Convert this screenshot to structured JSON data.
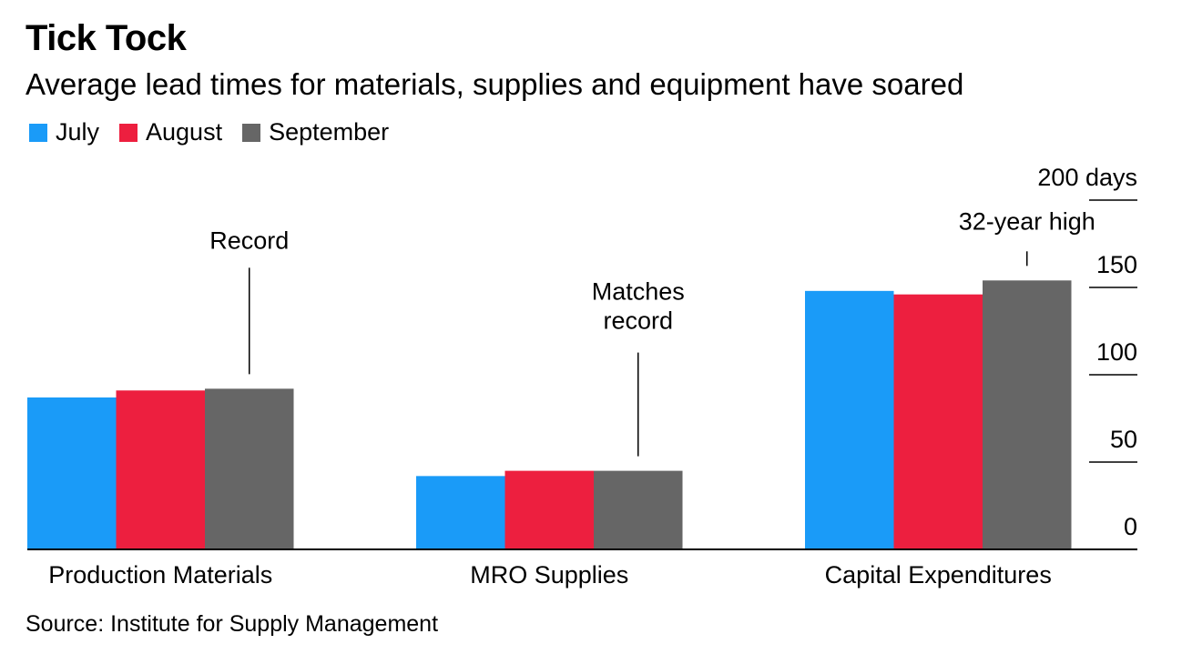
{
  "chart_data": {
    "type": "bar",
    "title": "Tick Tock",
    "subtitle": "Average lead times for materials, supplies and equipment have soared",
    "categories": [
      "Production Materials",
      "MRO Supplies",
      "Capital Expenditures"
    ],
    "series": [
      {
        "name": "July",
        "color": "#1a9bf8",
        "values": [
          87,
          42,
          148
        ]
      },
      {
        "name": "August",
        "color": "#ed1f3f",
        "values": [
          91,
          45,
          146
        ]
      },
      {
        "name": "September",
        "color": "#666666",
        "values": [
          92,
          45,
          154
        ]
      }
    ],
    "ylim": [
      0,
      200
    ],
    "yticks": [
      0,
      50,
      100,
      150,
      200
    ],
    "ytick_labels": [
      "0",
      "50",
      "100",
      "150",
      "200 days"
    ],
    "y_axis_side": "right",
    "legend_position": "top-left",
    "annotations": [
      {
        "category_index": 0,
        "series_index": 2,
        "lines": [
          "Record"
        ]
      },
      {
        "category_index": 1,
        "series_index": 2,
        "lines": [
          "Matches",
          "record"
        ]
      },
      {
        "category_index": 2,
        "series_index": 2,
        "lines": [
          "32-year high"
        ]
      }
    ],
    "source": "Source: Institute for Supply Management"
  }
}
